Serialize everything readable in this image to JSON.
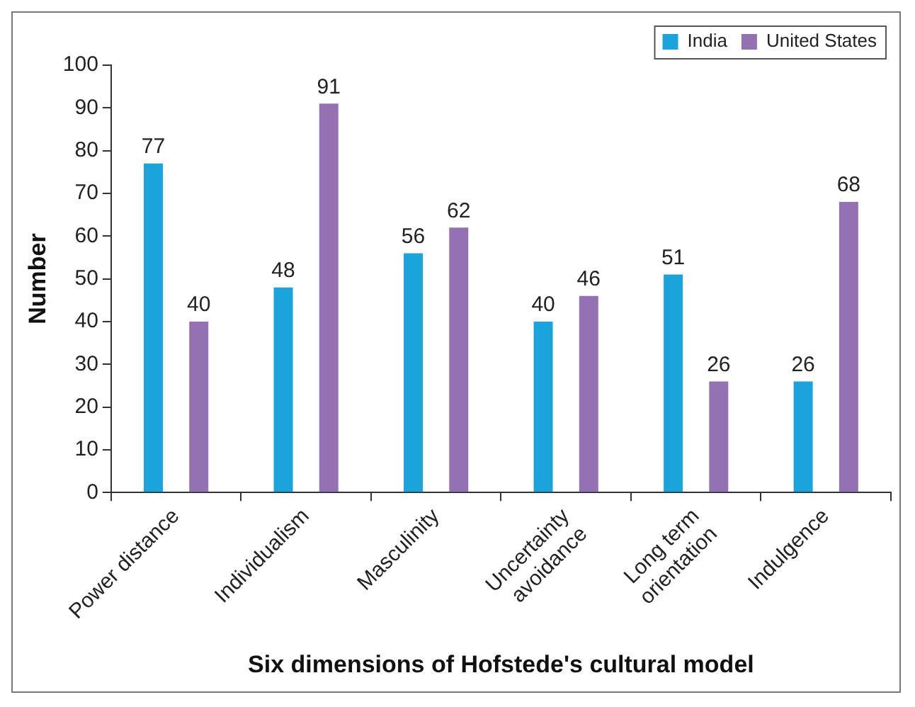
{
  "chart_data": {
    "type": "bar",
    "xlabel": "Six dimensions of Hofstede's cultural model",
    "ylabel": "Number",
    "categories": [
      "Power distance",
      "Individualism",
      "Masculinity",
      "Uncertainty avoidance",
      "Long term orientation",
      "Indulgence"
    ],
    "series": [
      {
        "name": "India",
        "color": "#1ba3dc",
        "values": [
          77,
          48,
          56,
          40,
          51,
          26
        ]
      },
      {
        "name": "United States",
        "color": "#9471b2",
        "values": [
          40,
          91,
          62,
          46,
          26,
          68
        ]
      }
    ],
    "ylim": [
      0,
      100
    ],
    "yticks": [
      0,
      10,
      20,
      30,
      40,
      50,
      60,
      70,
      80,
      90,
      100
    ],
    "grid": false,
    "legend": "top right",
    "data_labels": true
  }
}
